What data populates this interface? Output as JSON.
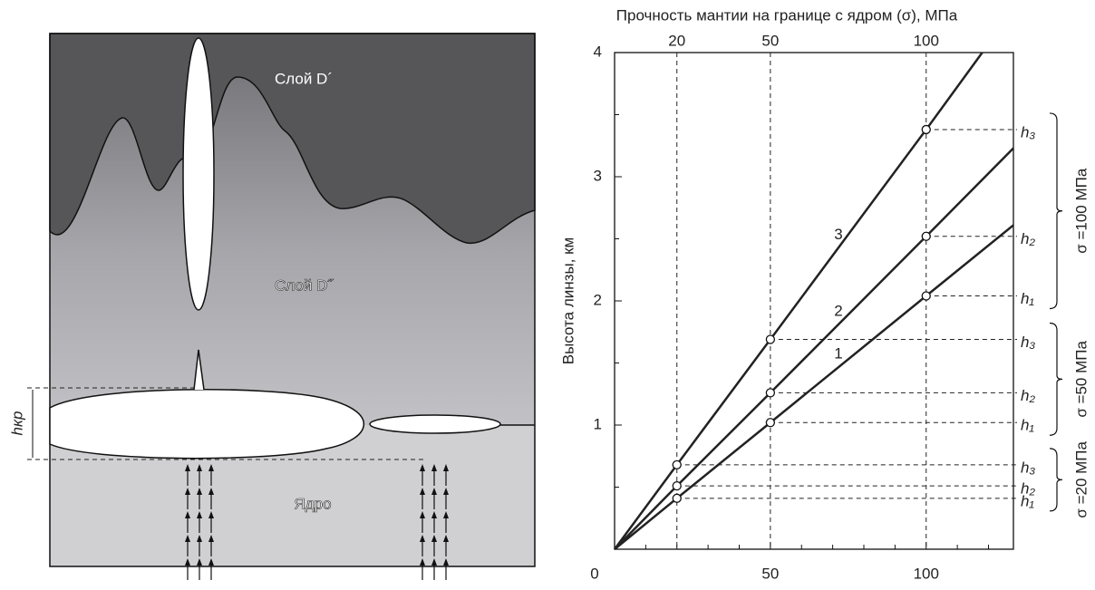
{
  "diagram": {
    "layer_top": "Слой D´",
    "layer_mid": "Слой D˝",
    "core": "Ядро",
    "h_label": "hкр"
  },
  "chart_data": {
    "type": "line",
    "x2label": "Прочность мантии на границе с ядром (σ), МПа",
    "ylabel": "Высота линзы, км",
    "xlim": [
      0,
      128
    ],
    "ylim": [
      0,
      4
    ],
    "xticks": [
      0,
      50,
      100
    ],
    "xminorticks": [
      10,
      20,
      30,
      40,
      60,
      70,
      80,
      90,
      110,
      120
    ],
    "yticks": [
      1,
      2,
      3,
      4
    ],
    "yminorticks": [
      0.5,
      1.5,
      2.5,
      3.5
    ],
    "x2ticks": [
      20,
      50,
      100
    ],
    "h_labels": [
      "h₁",
      "h₂",
      "h₃"
    ],
    "group_labels": [
      "σ =20 МПа",
      "σ =50 МПа",
      "σ =100 МПа"
    ],
    "color": "#222222",
    "series": [
      {
        "name": "1",
        "x": [
          0,
          20,
          50,
          100,
          128
        ],
        "values": [
          0,
          0.41,
          1.02,
          2.04,
          2.61
        ]
      },
      {
        "name": "2",
        "x": [
          0,
          20,
          50,
          100,
          128
        ],
        "values": [
          0,
          0.51,
          1.26,
          2.52,
          3.23
        ]
      },
      {
        "name": "3",
        "x": [
          0,
          20,
          50,
          100,
          118
        ],
        "values": [
          0,
          0.68,
          1.69,
          3.38,
          4
        ]
      }
    ]
  }
}
